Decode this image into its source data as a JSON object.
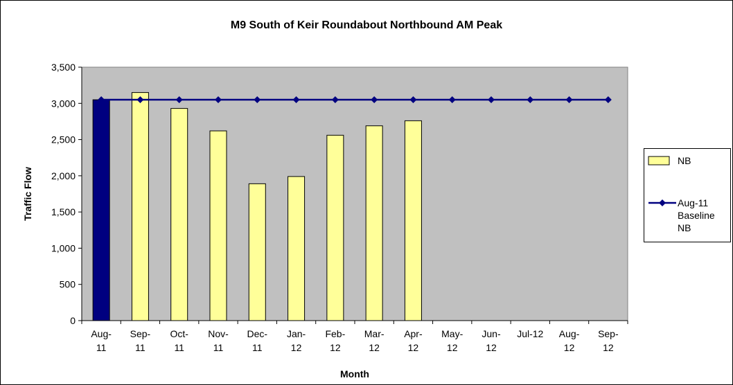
{
  "chart_data": {
    "type": "bar_line",
    "title": "M9 South of Keir Roundabout Northbound AM Peak",
    "x_label": "Month",
    "y_label": "Traffic Flow",
    "categories": [
      "Aug-11",
      "Sep-11",
      "Oct-11",
      "Nov-11",
      "Dec-11",
      "Jan-12",
      "Feb-12",
      "Mar-12",
      "Apr-12",
      "May-12",
      "Jun-12",
      "Jul-12",
      "Aug-12",
      "Sep-12"
    ],
    "series": [
      {
        "name": "NB",
        "type": "bar",
        "color": "#ffff99",
        "point_colors": [
          "#000080",
          "#ffff99",
          "#ffff99",
          "#ffff99",
          "#ffff99",
          "#ffff99",
          "#ffff99",
          "#ffff99",
          "#ffff99",
          null,
          null,
          null,
          null,
          null
        ],
        "values": [
          3050,
          3150,
          2930,
          2620,
          1890,
          1990,
          2560,
          2690,
          2760,
          null,
          null,
          null,
          null,
          null
        ]
      },
      {
        "name": "Aug-11 Baseline NB",
        "type": "line",
        "color": "#000080",
        "values": [
          3050,
          3050,
          3050,
          3050,
          3050,
          3050,
          3050,
          3050,
          3050,
          3050,
          3050,
          3050,
          3050,
          3050
        ]
      }
    ],
    "ylim": [
      0,
      3500
    ],
    "yticks": [
      0,
      500,
      {
        "value": 1000,
        "label": "1,000"
      },
      {
        "value": 1500,
        "label": "1,500"
      },
      {
        "value": 2000,
        "label": "2,000"
      },
      {
        "value": 2500,
        "label": "2,500"
      },
      {
        "value": 3000,
        "label": "3,000"
      },
      {
        "value": 3500,
        "label": "3,500"
      }
    ],
    "grid": false,
    "plot_background": "#c0c0c0",
    "legend": "right"
  }
}
